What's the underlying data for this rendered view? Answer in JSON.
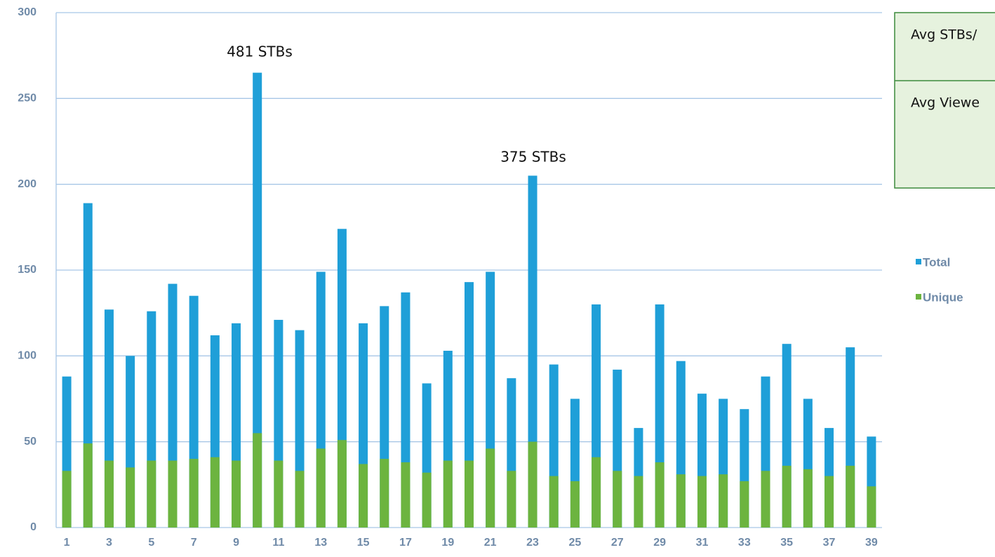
{
  "chart_data": {
    "type": "bar",
    "categories": [
      "1",
      null,
      "3",
      null,
      "5",
      null,
      "7",
      null,
      "9",
      null,
      "11",
      null,
      "13",
      null,
      "15",
      null,
      "17",
      null,
      "19",
      null,
      "21",
      null,
      "23",
      null,
      "25",
      null,
      "27",
      null,
      "29",
      null,
      "31",
      null,
      "33",
      null,
      "35",
      null,
      "37",
      null,
      "39"
    ],
    "series": [
      {
        "name": "Total",
        "color": "#1f9fd8",
        "values": [
          88,
          189,
          127,
          100,
          126,
          142,
          135,
          112,
          119,
          265,
          121,
          115,
          149,
          174,
          119,
          129,
          137,
          84,
          103,
          143,
          149,
          87,
          205,
          95,
          75,
          130,
          92,
          58,
          130,
          97,
          78,
          75,
          69,
          88,
          107,
          75,
          58,
          105,
          53
        ]
      },
      {
        "name": "Unique",
        "color": "#6cb43f",
        "values": [
          33,
          49,
          39,
          35,
          39,
          39,
          40,
          41,
          39,
          55,
          39,
          33,
          46,
          51,
          37,
          40,
          38,
          32,
          39,
          39,
          46,
          33,
          50,
          30,
          27,
          41,
          33,
          30,
          38,
          31,
          30,
          31,
          27,
          33,
          36,
          34,
          30,
          36,
          24
        ]
      }
    ],
    "annotations": [
      "481 STBs",
      "375 STBs"
    ],
    "boxes": [
      "Avg STBs/",
      "Avg Viewe"
    ],
    "ylim": [
      0,
      300
    ],
    "yticks": [
      0,
      50,
      100,
      150,
      200,
      250,
      300
    ],
    "grid": true,
    "overlap": true
  }
}
